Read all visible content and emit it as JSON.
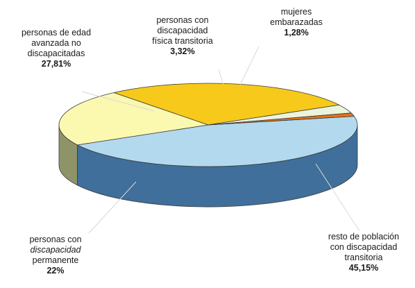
{
  "chart_data": {
    "type": "pie",
    "title": "",
    "slices": [
      {
        "id": "resto",
        "value": 45.15,
        "label_lines": [
          "resto de población",
          "con discapacidad",
          "transitoria"
        ],
        "value_label": "45,15%",
        "color_top": "#b3d9ef",
        "color_side": "#3f6f9a"
      },
      {
        "id": "permanente",
        "value": 22.0,
        "label_lines": [
          "personas con",
          "discapacidad",
          "permanente"
        ],
        "italic_line": 1,
        "value_label": "22%",
        "color_top": "#fbf8b0",
        "color_side": "#8f9468"
      },
      {
        "id": "edad",
        "value": 27.81,
        "label_lines": [
          "personas de edad",
          "avanzada no",
          "discapacitadas"
        ],
        "value_label": "27,81%",
        "color_top": "#f6c91a",
        "color_side": "#c79a10"
      },
      {
        "id": "fisica",
        "value": 3.32,
        "label_lines": [
          "personas con",
          "discapacidad",
          "física transitoria"
        ],
        "value_label": "3,32%",
        "color_top": "#ebf4dc",
        "color_side": "#b7c1a6"
      },
      {
        "id": "mujeres",
        "value": 1.28,
        "label_lines": [
          "mujeres",
          "embarazadas"
        ],
        "value_label": "1,28%",
        "color_top": "#e2731a",
        "color_side": "#9d4c10"
      }
    ]
  }
}
